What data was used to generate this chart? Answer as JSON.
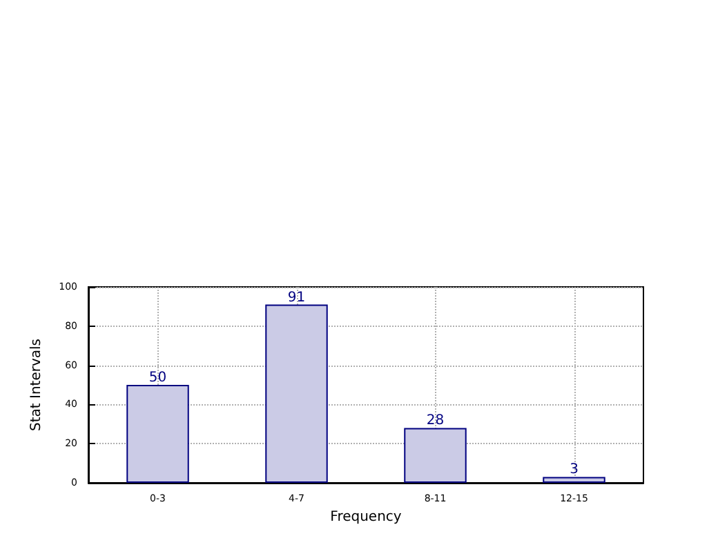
{
  "chart_data": {
    "type": "bar",
    "xlabel": "Frequency",
    "ylabel": "Stat Intervals",
    "categories": [
      "0-3",
      "4-7",
      "8-11",
      "12-15"
    ],
    "values": [
      50,
      91,
      28,
      3
    ],
    "color": "#cbcbe6",
    "ylim": [
      0,
      100
    ],
    "yticks": [
      0,
      20,
      40,
      60,
      80,
      100
    ],
    "grid": true,
    "data_labels": true
  }
}
